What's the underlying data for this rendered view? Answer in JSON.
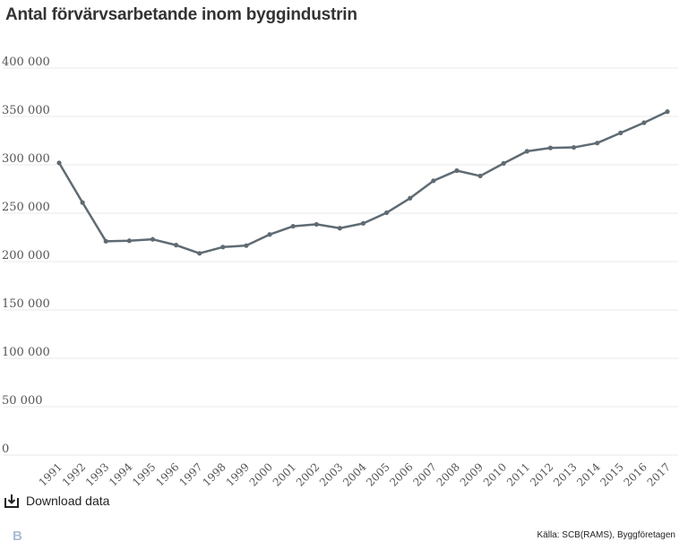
{
  "header": {
    "title": "Antal förvärvsarbetande inom byggindustrin"
  },
  "chart_data": {
    "type": "line",
    "title": "Antal förvärvsarbetande inom byggindustrin",
    "xlabel": "",
    "ylabel": "",
    "x": [
      "1991",
      "1992",
      "1993",
      "1994",
      "1995",
      "1996",
      "1997",
      "1998",
      "1999",
      "2000",
      "2001",
      "2002",
      "2003",
      "2004",
      "2005",
      "2006",
      "2007",
      "2008",
      "2009",
      "2010",
      "2011",
      "2012",
      "2013",
      "2014",
      "2015",
      "2016",
      "2017"
    ],
    "series": [
      {
        "values": [
          302000,
          261000,
          221000,
          221500,
          223000,
          217000,
          208500,
          215000,
          216500,
          228000,
          236500,
          238500,
          234500,
          239500,
          250500,
          265500,
          283500,
          294000,
          288500,
          301500,
          314000,
          317500,
          318000,
          322500,
          333000,
          343500,
          355000
        ]
      }
    ],
    "ylim": [
      0,
      400000
    ],
    "yticks": [
      0,
      50000,
      100000,
      150000,
      200000,
      250000,
      300000,
      350000,
      400000
    ],
    "ytick_labels": [
      "0",
      "50 000",
      "100 000",
      "150 000",
      "200 000",
      "250 000",
      "300 000",
      "350 000",
      "400 000"
    ],
    "grid": true,
    "line_color": "#5f6b73",
    "grid_color": "#e8e8e8"
  },
  "footer": {
    "download_label": "Download data",
    "download_icon": "download-icon",
    "source": "Källa: SCB(RAMS), Byggföretagen",
    "logo_text": "B"
  }
}
